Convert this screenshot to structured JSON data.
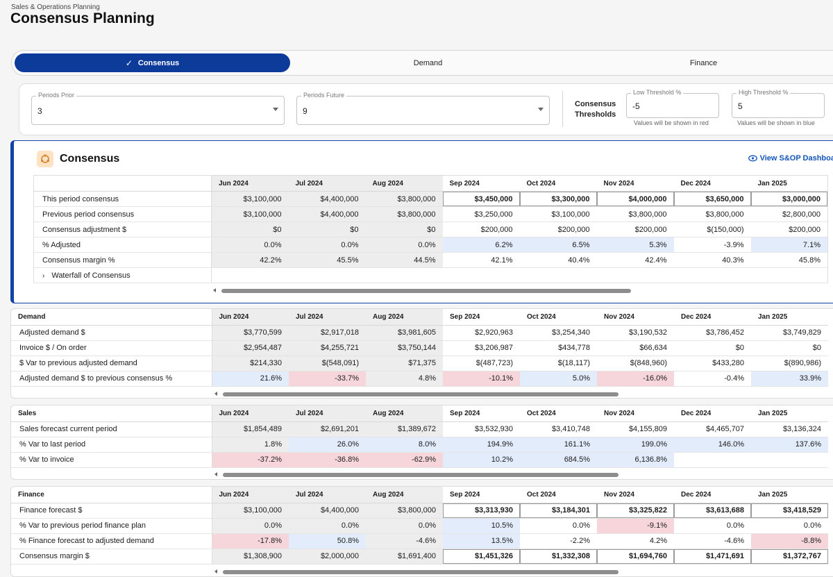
{
  "header": {
    "breadcrumb": "Sales & Operations Planning",
    "title": "Consensus Planning"
  },
  "tabs": [
    {
      "label": "Consensus",
      "active": true
    },
    {
      "label": "Demand"
    },
    {
      "label": "Finance"
    }
  ],
  "filters": {
    "periods_prior": {
      "label": "Periods Prior",
      "value": "3"
    },
    "periods_future": {
      "label": "Periods Future",
      "value": "9"
    },
    "thresholds_label_1": "Consensus",
    "thresholds_label_2": "Thresholds",
    "low": {
      "label": "Low Threshold %",
      "value": "-5",
      "help": "Values will be shown in red"
    },
    "high": {
      "label": "High Threshold %",
      "value": "5",
      "help": "Values will be shown in blue"
    }
  },
  "consensus": {
    "title": "Consensus",
    "dashboard_link": "View S&OP Dashboard",
    "expander_label": "Waterfall of Consensus"
  },
  "months": [
    "Jun 2024",
    "Jul 2024",
    "Aug 2024",
    "Sep 2024",
    "Oct 2024",
    "Nov 2024",
    "Dec 2024",
    "Jan 2025"
  ],
  "sections": {
    "consensus": {
      "rows": [
        {
          "label": "This period consensus",
          "values": [
            "$3,100,000",
            "$4,400,000",
            "$3,800,000",
            "$3,450,000",
            "$3,300,000",
            "$4,000,000",
            "$3,650,000",
            "$3,000,000"
          ],
          "styles": [
            "past",
            "past",
            "past",
            "boxed",
            "boxed",
            "boxed",
            "boxed",
            "boxed"
          ]
        },
        {
          "label": "Previous period consensus",
          "values": [
            "$3,100,000",
            "$4,400,000",
            "$3,800,000",
            "$3,250,000",
            "$3,100,000",
            "$3,800,000",
            "$3,800,000",
            "$2,800,000"
          ],
          "styles": [
            "past",
            "past",
            "past",
            "",
            "",
            "",
            "",
            ""
          ]
        },
        {
          "label": "Consensus adjustment $",
          "values": [
            "$0",
            "$0",
            "$0",
            "$200,000",
            "$200,000",
            "$200,000",
            "$(150,000)",
            "$200,000"
          ],
          "styles": [
            "past",
            "past",
            "past",
            "",
            "",
            "",
            "",
            ""
          ]
        },
        {
          "label": "% Adjusted",
          "values": [
            "0.0%",
            "0.0%",
            "0.0%",
            "6.2%",
            "6.5%",
            "5.3%",
            "-3.9%",
            "7.1%"
          ],
          "styles": [
            "past",
            "past",
            "past",
            "blue",
            "blue",
            "blue",
            "",
            "blue"
          ]
        },
        {
          "label": "Consensus margin %",
          "values": [
            "42.2%",
            "45.5%",
            "44.5%",
            "42.1%",
            "40.4%",
            "42.4%",
            "40.3%",
            "45.8%"
          ],
          "styles": [
            "past",
            "past",
            "past",
            "",
            "",
            "",
            "",
            ""
          ]
        }
      ]
    },
    "demand": {
      "title": "Demand",
      "rows": [
        {
          "label": "Adjusted demand $",
          "values": [
            "$3,770,599",
            "$2,917,018",
            "$3,981,605",
            "$2,920,963",
            "$3,254,340",
            "$3,190,532",
            "$3,786,452",
            "$3,749,829"
          ],
          "styles": [
            "past",
            "past",
            "past",
            "",
            "",
            "",
            "",
            ""
          ]
        },
        {
          "label": "Invoice $ / On order",
          "values": [
            "$2,954,487",
            "$4,255,721",
            "$3,750,144",
            "$3,206,987",
            "$434,778",
            "$66,634",
            "$0",
            "$0"
          ],
          "styles": [
            "past",
            "past",
            "past",
            "",
            "",
            "",
            "",
            ""
          ]
        },
        {
          "label": "$ Var to previous adjusted demand",
          "values": [
            "$214,330",
            "$(548,091)",
            "$71,375",
            "$(487,723)",
            "$(18,117)",
            "$(848,960)",
            "$433,280",
            "$(890,986)"
          ],
          "styles": [
            "past",
            "past",
            "past",
            "",
            "",
            "",
            "",
            ""
          ]
        },
        {
          "label": "Adjusted demand $ to previous consensus %",
          "values": [
            "21.6%",
            "-33.7%",
            "4.8%",
            "-10.1%",
            "5.0%",
            "-16.0%",
            "-0.4%",
            "33.9%"
          ],
          "styles": [
            "blue",
            "red",
            "past",
            "red",
            "blue",
            "red",
            "",
            "blue"
          ]
        }
      ]
    },
    "sales": {
      "title": "Sales",
      "rows": [
        {
          "label": "Sales forecast current period",
          "values": [
            "$1,854,489",
            "$2,691,201",
            "$1,389,672",
            "$3,532,930",
            "$3,410,748",
            "$4,155,809",
            "$4,465,707",
            "$3,136,324"
          ],
          "styles": [
            "past",
            "past",
            "past",
            "",
            "",
            "",
            "",
            ""
          ]
        },
        {
          "label": "% Var to last period",
          "values": [
            "1.8%",
            "26.0%",
            "8.0%",
            "194.9%",
            "161.1%",
            "199.0%",
            "146.0%",
            "137.6%"
          ],
          "styles": [
            "past",
            "blue",
            "blue",
            "blue",
            "blue",
            "blue",
            "blue",
            "blue"
          ]
        },
        {
          "label": "% Var to invoice",
          "values": [
            "-37.2%",
            "-36.8%",
            "-62.9%",
            "10.2%",
            "684.5%",
            "6,136.8%",
            "",
            ""
          ],
          "styles": [
            "red",
            "red",
            "red",
            "blue",
            "blue",
            "blue",
            "",
            ""
          ]
        }
      ]
    },
    "finance": {
      "title": "Finance",
      "rows": [
        {
          "label": "Finance forecast $",
          "values": [
            "$3,100,000",
            "$4,400,000",
            "$3,800,000",
            "$3,313,930",
            "$3,184,301",
            "$3,325,822",
            "$3,613,688",
            "$3,418,529"
          ],
          "styles": [
            "past",
            "past",
            "past",
            "boxed",
            "boxed",
            "boxed",
            "boxed",
            "boxed"
          ]
        },
        {
          "label": "% Var to previous period finance plan",
          "values": [
            "0.0%",
            "0.0%",
            "0.0%",
            "10.5%",
            "0.0%",
            "-9.1%",
            "0.0%",
            "0.0%"
          ],
          "styles": [
            "past",
            "past",
            "past",
            "blue",
            "",
            "red",
            "",
            ""
          ]
        },
        {
          "label": "% Finance forecast to adjusted demand",
          "values": [
            "-17.8%",
            "50.8%",
            "-4.6%",
            "13.5%",
            "-2.2%",
            "4.2%",
            "-4.6%",
            "-8.8%"
          ],
          "styles": [
            "red",
            "blue",
            "past",
            "blue",
            "",
            "",
            "",
            "red"
          ]
        },
        {
          "label": "Consensus margin $",
          "values": [
            "$1,308,900",
            "$2,000,000",
            "$1,691,400",
            "$1,451,326",
            "$1,332,308",
            "$1,694,760",
            "$1,471,691",
            "$1,372,767"
          ],
          "styles": [
            "past",
            "past",
            "past",
            "boxed",
            "boxed",
            "boxed",
            "boxed",
            "boxed"
          ]
        }
      ]
    }
  }
}
